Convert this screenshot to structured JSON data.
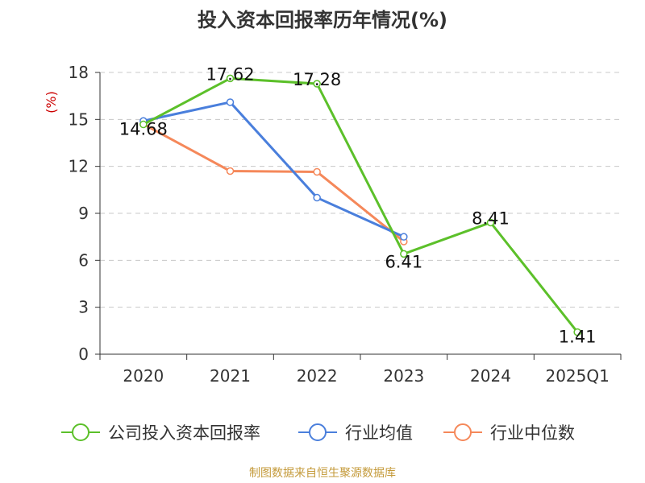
{
  "chart_data": {
    "type": "line",
    "title": "投入资本回报率历年情况(%)",
    "ylabel": "(%)",
    "xlabel": "",
    "categories": [
      "2020",
      "2021",
      "2022",
      "2023",
      "2024",
      "2025Q1"
    ],
    "ylim": [
      0,
      18
    ],
    "yticks": [
      0,
      3,
      6,
      9,
      12,
      15,
      18
    ],
    "grid": true,
    "legend_position": "bottom",
    "series": [
      {
        "name": "公司投入资本回报率",
        "color": "#5cc02a",
        "values": [
          14.68,
          17.62,
          17.28,
          6.41,
          8.41,
          1.41
        ],
        "labels": [
          "14.68",
          "17.62",
          "17.28",
          "6.41",
          "8.41",
          "1.41"
        ]
      },
      {
        "name": "行业均值",
        "color": "#4a7fdc",
        "values": [
          14.9,
          16.1,
          10.0,
          7.5,
          null,
          null
        ]
      },
      {
        "name": "行业中位数",
        "color": "#f5885a",
        "values": [
          14.7,
          11.7,
          11.65,
          7.2,
          null,
          null
        ]
      }
    ],
    "source": "制图数据来自恒生聚源数据库"
  }
}
